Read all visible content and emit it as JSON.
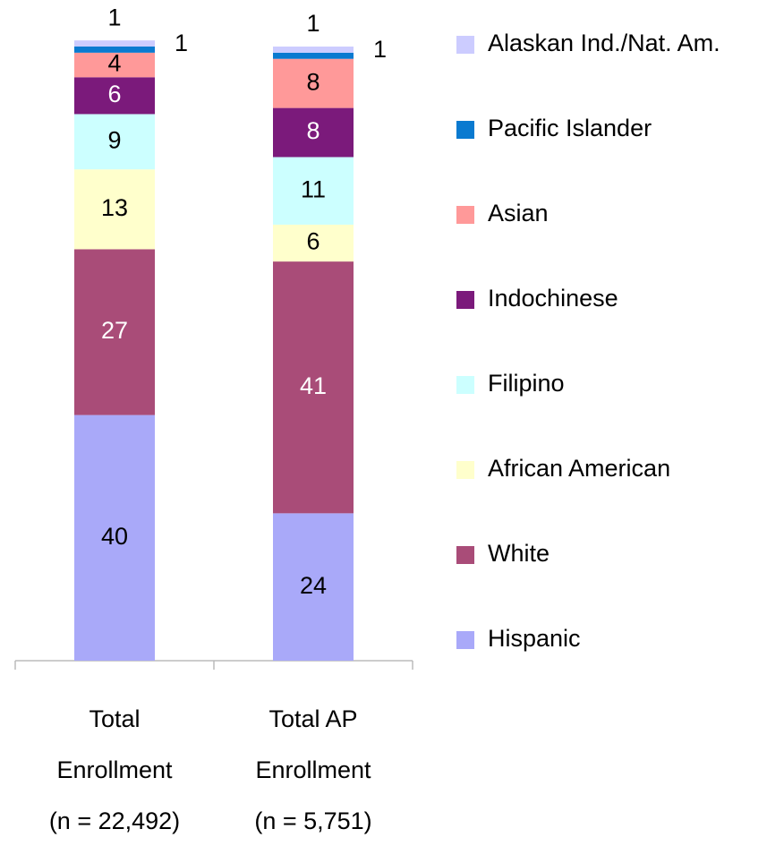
{
  "chart_data": {
    "type": "stacked_bar",
    "categories": [
      [
        "Total",
        "Enrollment",
        "(n = 22,492)"
      ],
      [
        "Total AP",
        "Enrollment",
        "(n = 5,751)"
      ]
    ],
    "series": [
      {
        "name": "Hispanic",
        "color": "#a9a9f9",
        "values": [
          40,
          24
        ]
      },
      {
        "name": "White",
        "color": "#a94c78",
        "values": [
          27,
          41
        ]
      },
      {
        "name": "African American",
        "color": "#ffffcc",
        "values": [
          13,
          6
        ]
      },
      {
        "name": "Filipino",
        "color": "#ccffff",
        "values": [
          9,
          11
        ]
      },
      {
        "name": "Indochinese",
        "color": "#7b1a7b",
        "values": [
          6,
          8
        ]
      },
      {
        "name": "Asian",
        "color": "#ff9999",
        "values": [
          4,
          8
        ]
      },
      {
        "name": "Pacific Islander",
        "color": "#0a7ad0",
        "values": [
          1,
          1
        ]
      },
      {
        "name": "Alaskan Ind./Nat. Am.",
        "color": "#ccccff",
        "values": [
          1,
          1
        ]
      }
    ]
  }
}
